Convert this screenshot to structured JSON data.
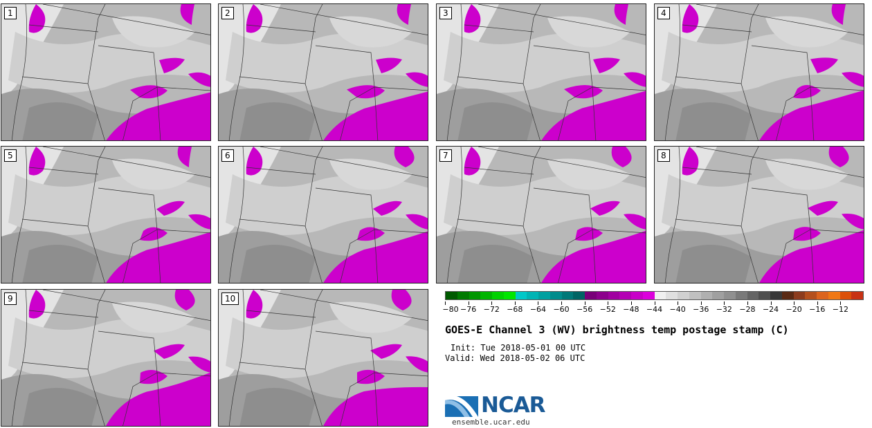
{
  "panels": [
    {
      "label": "1"
    },
    {
      "label": "2"
    },
    {
      "label": "3"
    },
    {
      "label": "4"
    },
    {
      "label": "5"
    },
    {
      "label": "6"
    },
    {
      "label": "7"
    },
    {
      "label": "8"
    },
    {
      "label": "9"
    },
    {
      "label": "10"
    }
  ],
  "colorbar": {
    "colors": [
      "#005a00",
      "#007a00",
      "#009600",
      "#00b400",
      "#00d200",
      "#00e600",
      "#00c8c8",
      "#00b4b4",
      "#00a0a0",
      "#008c8c",
      "#007878",
      "#006464",
      "#780078",
      "#8c008c",
      "#a000a0",
      "#b400b4",
      "#c800c8",
      "#dc00dc",
      "#f0f0f0",
      "#e0e0e0",
      "#d0d0d0",
      "#c0c0c0",
      "#b0b0b0",
      "#a0a0a0",
      "#909090",
      "#7a7a7a",
      "#646464",
      "#4e4e4e",
      "#383838",
      "#5a2a14",
      "#8c3c1e",
      "#b4501e",
      "#dc641e",
      "#f07814",
      "#dc500a",
      "#c83214"
    ],
    "ticks": [
      "−80",
      "−76",
      "−72",
      "−68",
      "−64",
      "−60",
      "−56",
      "−52",
      "−48",
      "−44",
      "−40",
      "−36",
      "−32",
      "−28",
      "−24",
      "−20",
      "−16",
      "−12"
    ]
  },
  "title": "GOES-E Channel 3 (WV) brightness temp postage stamp (C)",
  "init": "Init: Tue 2018-05-01 00 UTC",
  "valid": "Valid: Wed 2018-05-02 06 UTC",
  "logo": {
    "text": "NCAR",
    "url": "ensemble.ucar.edu"
  }
}
